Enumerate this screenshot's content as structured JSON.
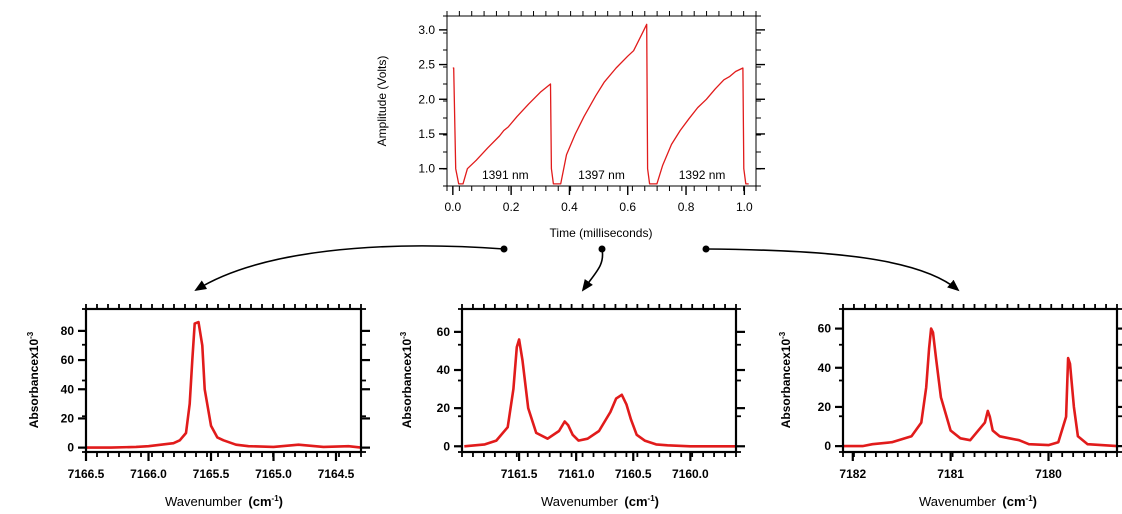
{
  "colors": {
    "trace": "#e11b1b",
    "axis": "#000000",
    "arrow": "#000000",
    "background": "#ffffff"
  },
  "chart_data": [
    {
      "id": "time",
      "type": "line",
      "xlabel": "Time (milliseconds)",
      "ylabel": "Amplitude (Volts)",
      "xlim": [
        -0.02,
        1.04
      ],
      "ylim": [
        0.75,
        3.2
      ],
      "xticks": [
        0.0,
        0.2,
        0.4,
        0.6,
        0.8,
        1.0
      ],
      "xtick_labels": [
        "0.0",
        "0.2",
        "0.4",
        "0.6",
        "0.8",
        "1.0"
      ],
      "yticks": [
        1.0,
        1.5,
        2.0,
        2.5,
        3.0
      ],
      "ytick_labels": [
        "1.0",
        "1.5",
        "2.0",
        "2.5",
        "3.0"
      ],
      "annotations": [
        {
          "text": "1391 nm",
          "x": 0.18,
          "y": 0.85
        },
        {
          "text": "1397 nm",
          "x": 0.51,
          "y": 0.85
        },
        {
          "text": "1392 nm",
          "x": 0.855,
          "y": 0.85
        }
      ],
      "series": [
        {
          "x": [
            0.0,
            0.003,
            0.01,
            0.02,
            0.035,
            0.05,
            0.08,
            0.12,
            0.16,
            0.175,
            0.19,
            0.22,
            0.26,
            0.3,
            0.335,
            0.338,
            0.345,
            0.355,
            0.37,
            0.39,
            0.42,
            0.45,
            0.49,
            0.52,
            0.56,
            0.6,
            0.62,
            0.65,
            0.665,
            0.668,
            0.675,
            0.685,
            0.7,
            0.72,
            0.75,
            0.78,
            0.81,
            0.84,
            0.87,
            0.9,
            0.93,
            0.95,
            0.97,
            0.995,
            0.998,
            1.005,
            1.015
          ],
          "y": [
            2.45,
            2.45,
            1.0,
            0.78,
            0.78,
            1.0,
            1.12,
            1.3,
            1.47,
            1.55,
            1.6,
            1.75,
            1.93,
            2.1,
            2.22,
            1.0,
            0.78,
            0.78,
            0.78,
            1.2,
            1.5,
            1.75,
            2.05,
            2.25,
            2.45,
            2.62,
            2.7,
            2.95,
            3.08,
            1.0,
            0.78,
            0.78,
            0.78,
            1.05,
            1.35,
            1.55,
            1.72,
            1.88,
            2.0,
            2.15,
            2.28,
            2.33,
            2.4,
            2.45,
            1.0,
            0.78,
            0.78
          ]
        }
      ]
    },
    {
      "id": "spec1",
      "type": "line",
      "xlabel": "Wavenumber",
      "xlabel_unit": "(cm",
      "xlabel_sup": "-1",
      "xlabel_close": ")",
      "ylabel": "Absorbancex10",
      "ylabel_sup": "-3",
      "xlim": [
        7166.5,
        7164.3
      ],
      "ylim": [
        -3,
        95
      ],
      "xticks": [
        7166.5,
        7166.0,
        7165.5,
        7165.0,
        7164.5
      ],
      "xtick_labels": [
        "7166.5",
        "7166.0",
        "7165.5",
        "7165.0",
        "7164.5"
      ],
      "yticks": [
        0,
        20,
        40,
        60,
        80
      ],
      "ytick_labels": [
        "0",
        "20",
        "40",
        "60",
        "80"
      ],
      "series": [
        {
          "x": [
            7166.5,
            7166.3,
            7166.1,
            7166.0,
            7165.9,
            7165.8,
            7165.75,
            7165.7,
            7165.67,
            7165.65,
            7165.63,
            7165.6,
            7165.57,
            7165.55,
            7165.5,
            7165.45,
            7165.4,
            7165.3,
            7165.2,
            7165.0,
            7164.8,
            7164.6,
            7164.4,
            7164.3
          ],
          "y": [
            0,
            0,
            0.5,
            1,
            2,
            3,
            5,
            10,
            30,
            60,
            85,
            86,
            70,
            40,
            15,
            7,
            5,
            2,
            1,
            0.5,
            2,
            0.5,
            1,
            0
          ]
        }
      ]
    },
    {
      "id": "spec2",
      "type": "line",
      "xlabel": "Wavenumber",
      "xlabel_unit": "(cm",
      "xlabel_sup": "-1",
      "xlabel_close": ")",
      "ylabel": "Absorbancex10",
      "ylabel_sup": "-3",
      "xlim": [
        7162.0,
        7159.6
      ],
      "ylim": [
        -3,
        72
      ],
      "xticks": [
        7161.5,
        7161.0,
        7160.5,
        7160.0
      ],
      "xtick_labels": [
        "7161.5",
        "7161.0",
        "7160.5",
        "7160.0"
      ],
      "yticks": [
        0,
        20,
        40,
        60
      ],
      "ytick_labels": [
        "0",
        "20",
        "40",
        "60"
      ],
      "series": [
        {
          "x": [
            7161.98,
            7161.8,
            7161.7,
            7161.6,
            7161.55,
            7161.52,
            7161.5,
            7161.47,
            7161.42,
            7161.35,
            7161.25,
            7161.15,
            7161.1,
            7161.07,
            7161.03,
            7160.98,
            7160.9,
            7160.8,
            7160.7,
            7160.65,
            7160.6,
            7160.56,
            7160.52,
            7160.47,
            7160.4,
            7160.3,
            7160.2,
            7160.0,
            7159.8,
            7159.6
          ],
          "y": [
            0,
            1,
            3,
            10,
            30,
            52,
            56,
            45,
            20,
            7,
            4,
            8,
            13,
            11,
            6,
            3,
            4,
            8,
            18,
            25,
            27,
            22,
            14,
            6,
            3,
            1,
            0.5,
            0,
            0,
            0
          ]
        }
      ]
    },
    {
      "id": "spec3",
      "type": "line",
      "xlabel": "Wavenumber",
      "xlabel_unit": "(cm",
      "xlabel_sup": "-1",
      "xlabel_close": ")",
      "ylabel": "Absorbancex10",
      "ylabel_sup": "-3",
      "xlim": [
        7182.1,
        7179.3
      ],
      "ylim": [
        -3,
        70
      ],
      "xticks": [
        7182,
        7181,
        7180
      ],
      "xtick_labels": [
        "7182",
        "7181",
        "7180"
      ],
      "yticks": [
        0,
        20,
        40,
        60
      ],
      "ytick_labels": [
        "0",
        "20",
        "40",
        "60"
      ],
      "series": [
        {
          "x": [
            7182.1,
            7181.9,
            7181.8,
            7181.6,
            7181.4,
            7181.3,
            7181.25,
            7181.22,
            7181.2,
            7181.18,
            7181.15,
            7181.1,
            7181.0,
            7180.9,
            7180.8,
            7180.65,
            7180.62,
            7180.6,
            7180.57,
            7180.5,
            7180.4,
            7180.3,
            7180.25,
            7180.2,
            7180.0,
            7179.9,
            7179.82,
            7179.8,
            7179.78,
            7179.74,
            7179.7,
            7179.6,
            7179.3
          ],
          "y": [
            0,
            0,
            1,
            2,
            5,
            12,
            30,
            50,
            60,
            58,
            45,
            25,
            8,
            4,
            3,
            12,
            18,
            15,
            8,
            5,
            4,
            3,
            2,
            1,
            0.5,
            2,
            15,
            45,
            42,
            20,
            5,
            1,
            0
          ]
        }
      ]
    }
  ]
}
